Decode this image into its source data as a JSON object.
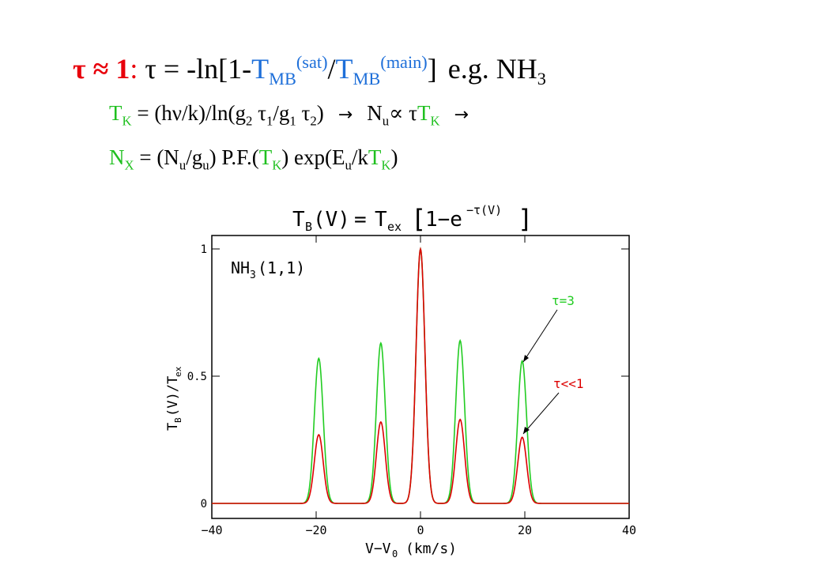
{
  "equations": {
    "line1": {
      "tau_approx": "τ ≈ 1",
      "colon": ":",
      "lhs": " τ = -ln[1-",
      "T1": "T",
      "T1_sub": "MB",
      "T1_sup": "(sat)",
      "slash": "/",
      "T2": "T",
      "T2_sub": "MB",
      "T2_sup": "(main)",
      "close": "]",
      "eg": "e.g. NH",
      "eg_sub": "3"
    },
    "line2": {
      "T": "T",
      "T_sub": "K",
      "rhs_a": " = (hν/k)/ln(g",
      "g2_sub": "2",
      "tau_a": " τ",
      "tau1_sub": "1",
      "rhs_b": "/g",
      "g1_sub": "1",
      "tau_b": " τ",
      "tau2_sub": "2",
      "rhs_c": ")",
      "arrow1": "→",
      "N": "N",
      "Nu_sub": "u",
      "prop": "∝ τ",
      "T3": "T",
      "T3_sub": "K",
      "arrow2": "→"
    },
    "line3": {
      "N": "N",
      "N_sub": "X",
      "rhs_a": " = (N",
      "u1_sub": "u",
      "rhs_b": "/g",
      "gu_sub": "u",
      "rhs_c": ") P.F.(",
      "T1": "T",
      "T1_sub": "K",
      "rhs_d": ") exp(E",
      "Eu_sub": "u",
      "rhs_e": "/k",
      "T2": "T",
      "T2_sub": "K",
      "rhs_f": ")"
    }
  },
  "chart_data": {
    "type": "line",
    "title": "T_B(V) = T_ex [1−e^(−τ(V))]",
    "xlabel": "V−V0 (km/s)",
    "ylabel": "TB(V)/Tex",
    "xlim": [
      -40,
      40
    ],
    "ylim": [
      0,
      1.05
    ],
    "xticks": [
      "−40",
      "−20",
      "0",
      "20",
      "40"
    ],
    "yticks": [
      "0",
      "0.5",
      "1"
    ],
    "annotation": "NH3(1,1)",
    "hyperfine_centers": [
      -19.5,
      -7.6,
      0,
      7.6,
      19.5
    ],
    "line_width_kms": 0.85,
    "series": [
      {
        "name": "τ=3",
        "color": "#22cc22",
        "peaks": [
          0.57,
          0.63,
          1.0,
          0.64,
          0.56
        ]
      },
      {
        "name": "τ<<1",
        "color": "#dd0000",
        "peaks": [
          0.27,
          0.32,
          1.0,
          0.33,
          0.26
        ]
      }
    ]
  }
}
